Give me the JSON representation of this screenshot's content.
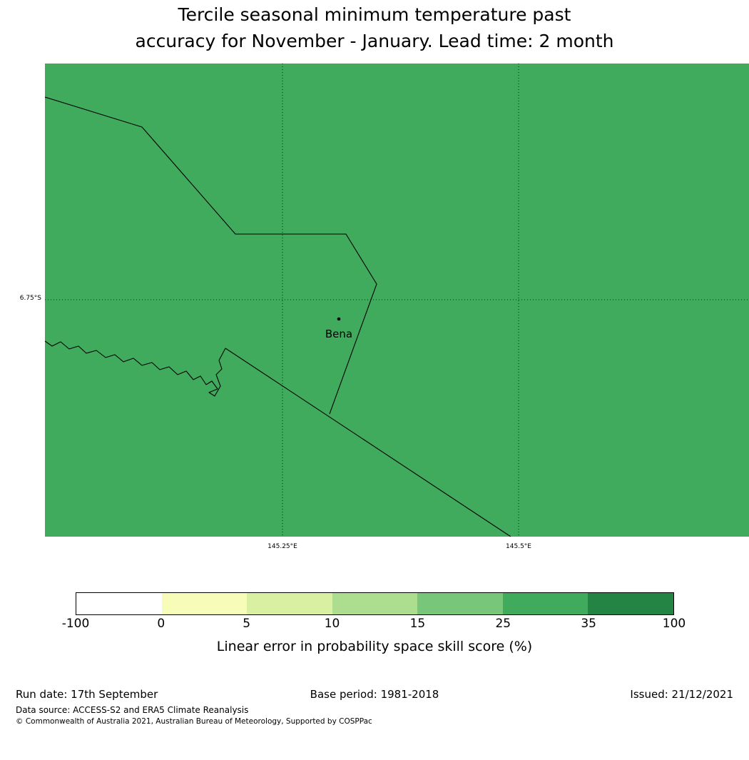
{
  "title": {
    "line1": "Tercile seasonal minimum temperature past",
    "line2": "accuracy for November - January. Lead time: 2 month"
  },
  "map": {
    "fill_color": "#41ab5d",
    "place_label": "Bena",
    "y_tick": "6.75°S",
    "x_ticks": [
      "145.25°E",
      "145.5°E"
    ]
  },
  "colorbar": {
    "ticks": [
      "-100",
      "0",
      "5",
      "10",
      "15",
      "25",
      "35",
      "100"
    ],
    "colors": [
      "#ffffff",
      "#f7fcb9",
      "#d9f0a3",
      "#addd8e",
      "#78c679",
      "#41ab5d",
      "#238443"
    ],
    "label": "Linear error in probability space skill score (%)"
  },
  "footer": {
    "run_date": "Run date: 17th September",
    "base_period": "Base period: 1981-2018",
    "issued": "Issued: 21/12/2021",
    "data_source": "Data source: ACCESS-S2 and ERA5 Climate Reanalysis",
    "copyright": "© Commonwealth of Australia 2021, Australian Bureau of Meteorology, Supported by COSPPac"
  },
  "chart_data": {
    "type": "heatmap",
    "title": "Tercile seasonal minimum temperature past accuracy for November - January. Lead time: 2 month",
    "colorbar_label": "Linear error in probability space skill score (%)",
    "colorbar_ticks": [
      -100,
      0,
      5,
      10,
      15,
      25,
      35,
      100
    ],
    "colorbar_colors": [
      "#ffffff",
      "#f7fcb9",
      "#d9f0a3",
      "#addd8e",
      "#78c679",
      "#41ab5d",
      "#238443"
    ],
    "map_uniform_value_bin": "25-35",
    "x_ticks": [
      "145.25°E",
      "145.5°E"
    ],
    "y_ticks": [
      "6.75°S"
    ],
    "place_labels": [
      "Bena"
    ],
    "legend_position": "bottom",
    "grid": true
  }
}
